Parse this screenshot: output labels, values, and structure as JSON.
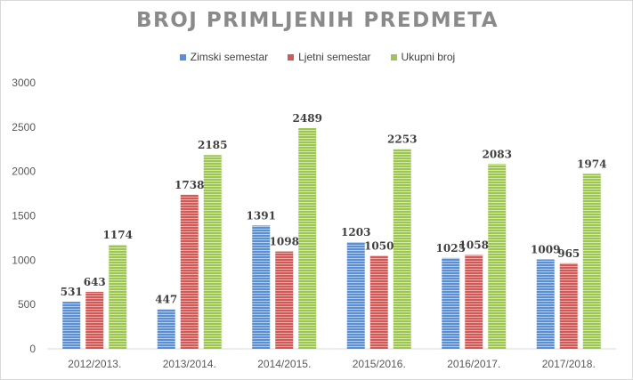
{
  "chart_data": {
    "type": "bar",
    "title": "BROJ PRIMLJENIH PREDMETA",
    "categories": [
      "2012/2013.",
      "2013/2014.",
      "2014/2015.",
      "2015/2016.",
      "2016/2017.",
      "2017/2018."
    ],
    "series": [
      {
        "name": "Zimski semestar",
        "color": "#5b8fd1",
        "values": [
          531,
          447,
          1391,
          1203,
          1025,
          1009
        ]
      },
      {
        "name": "Ljetni semestar",
        "color": "#d05a57",
        "values": [
          643,
          1738,
          1098,
          1050,
          1058,
          965
        ]
      },
      {
        "name": "Ukupni broj",
        "color": "#9cc64f",
        "values": [
          1174,
          2185,
          2489,
          2253,
          2083,
          1974
        ]
      }
    ],
    "y_ticks": [
      "0",
      "500",
      "1000",
      "1500",
      "2000",
      "2500",
      "3000"
    ],
    "ylim": [
      0,
      3000
    ],
    "legend_position": "top-center",
    "grid": false
  }
}
